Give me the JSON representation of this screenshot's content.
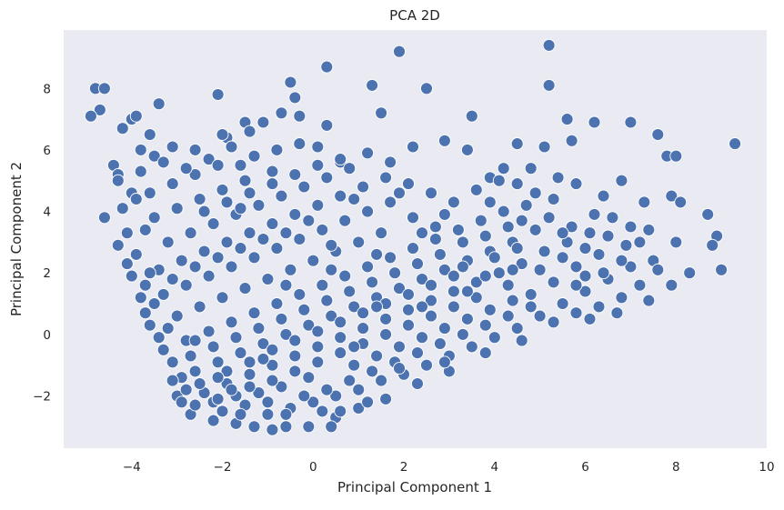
{
  "chart_data": {
    "type": "scatter",
    "title": "PCA 2D",
    "xlabel": "Principal Component 1",
    "ylabel": "Principal Component 2",
    "xlim": [
      -5.5,
      10.0
    ],
    "ylim": [
      -3.7,
      9.9
    ],
    "x_ticks": [
      -4,
      -2,
      0,
      2,
      4,
      6,
      8,
      10
    ],
    "x_tick_labels": [
      "−4",
      "−2",
      "0",
      "2",
      "4",
      "6",
      "8",
      "10"
    ],
    "y_ticks": [
      -2,
      0,
      2,
      4,
      6,
      8
    ],
    "y_tick_labels": [
      "−2",
      "0",
      "2",
      "4",
      "6",
      "8"
    ],
    "grid": false,
    "legend": "none",
    "colors": {
      "background": "#eaeaf2",
      "marker": "#4c72b0",
      "marker_edge": "#ffffff"
    },
    "points": [
      [
        5.2,
        9.4
      ],
      [
        1.9,
        9.2
      ],
      [
        0.3,
        8.7
      ],
      [
        -0.5,
        8.2
      ],
      [
        1.3,
        8.1
      ],
      [
        2.5,
        8.0
      ],
      [
        5.2,
        8.1
      ],
      [
        -4.8,
        8.0
      ],
      [
        -4.6,
        8.0
      ],
      [
        -2.1,
        7.8
      ],
      [
        -0.4,
        7.7
      ],
      [
        -3.4,
        7.5
      ],
      [
        -4.7,
        7.3
      ],
      [
        -4.9,
        7.1
      ],
      [
        3.5,
        7.1
      ],
      [
        5.6,
        7.0
      ],
      [
        6.2,
        6.9
      ],
      [
        7.0,
        6.9
      ],
      [
        -4.0,
        7.0
      ],
      [
        -3.9,
        7.1
      ],
      [
        -1.5,
        6.9
      ],
      [
        -1.1,
        6.9
      ],
      [
        -0.7,
        7.2
      ],
      [
        -0.3,
        7.1
      ],
      [
        1.5,
        7.2
      ],
      [
        0.3,
        6.8
      ],
      [
        -1.9,
        6.4
      ],
      [
        -1.4,
        6.6
      ],
      [
        -2.0,
        6.5
      ],
      [
        -3.6,
        6.5
      ],
      [
        -4.2,
        6.7
      ],
      [
        7.6,
        6.5
      ],
      [
        9.3,
        6.2
      ],
      [
        4.5,
        6.2
      ],
      [
        5.1,
        6.1
      ],
      [
        5.7,
        6.3
      ],
      [
        7.8,
        5.8
      ],
      [
        8.0,
        5.8
      ],
      [
        -4.4,
        5.5
      ],
      [
        -4.3,
        5.2
      ],
      [
        -4.6,
        3.8
      ],
      [
        7.9,
        4.5
      ],
      [
        8.1,
        4.3
      ],
      [
        8.7,
        3.9
      ],
      [
        8.9,
        3.2
      ],
      [
        8.0,
        3.0
      ],
      [
        8.8,
        2.9
      ],
      [
        9.0,
        2.1
      ],
      [
        8.3,
        2.0
      ],
      [
        7.9,
        1.6
      ],
      [
        7.4,
        1.1
      ],
      [
        6.7,
        0.7
      ],
      [
        6.1,
        0.5
      ],
      [
        5.3,
        0.4
      ],
      [
        4.6,
        -0.2
      ],
      [
        3.8,
        -0.6
      ],
      [
        3.0,
        -1.2
      ],
      [
        2.3,
        -1.6
      ],
      [
        1.6,
        -2.1
      ],
      [
        1.0,
        -2.4
      ],
      [
        0.5,
        -2.7
      ],
      [
        0.4,
        -3.0
      ],
      [
        -0.1,
        -3.0
      ],
      [
        -0.6,
        -3.0
      ],
      [
        -0.9,
        -3.1
      ],
      [
        -1.3,
        -3.0
      ],
      [
        -1.7,
        -2.9
      ],
      [
        -2.2,
        -2.8
      ],
      [
        -2.7,
        -2.6
      ],
      [
        -3.0,
        -2.0
      ],
      [
        -2.9,
        -1.4
      ],
      [
        -3.1,
        -0.9
      ],
      [
        -3.3,
        -0.5
      ],
      [
        -3.4,
        -0.1
      ],
      [
        -3.6,
        0.3
      ],
      [
        -3.7,
        0.7
      ],
      [
        -3.8,
        1.2
      ],
      [
        -3.7,
        1.6
      ],
      [
        -4.0,
        1.9
      ],
      [
        -4.1,
        2.3
      ],
      [
        -4.3,
        2.9
      ],
      [
        -4.1,
        3.3
      ],
      [
        -4.2,
        4.1
      ],
      [
        -4.0,
        4.6
      ],
      [
        -4.3,
        5.0
      ],
      [
        -3.8,
        5.3
      ],
      [
        -3.5,
        5.8
      ],
      [
        -3.1,
        6.1
      ],
      [
        -2.6,
        6.0
      ],
      [
        -2.3,
        5.7
      ],
      [
        -1.8,
        6.1
      ],
      [
        -1.3,
        5.8
      ],
      [
        -0.8,
        6.0
      ],
      [
        -0.3,
        6.2
      ],
      [
        0.1,
        6.1
      ],
      [
        0.6,
        5.6
      ],
      [
        1.2,
        5.9
      ],
      [
        1.7,
        5.6
      ],
      [
        2.2,
        6.1
      ],
      [
        2.9,
        6.3
      ],
      [
        3.4,
        6.0
      ],
      [
        3.9,
        5.1
      ],
      [
        4.1,
        5.0
      ],
      [
        4.5,
        4.9
      ],
      [
        4.9,
        4.6
      ],
      [
        5.3,
        4.4
      ],
      [
        5.8,
        4.9
      ],
      [
        6.4,
        4.5
      ],
      [
        6.8,
        5.0
      ],
      [
        7.3,
        4.3
      ],
      [
        6.6,
        3.8
      ],
      [
        6.1,
        3.3
      ],
      [
        5.6,
        3.0
      ],
      [
        5.1,
        2.7
      ],
      [
        4.6,
        2.3
      ],
      [
        4.1,
        2.0
      ],
      [
        3.6,
        1.7
      ],
      [
        3.1,
        1.4
      ],
      [
        2.6,
        1.1
      ],
      [
        2.1,
        0.8
      ],
      [
        1.6,
        0.5
      ],
      [
        1.1,
        0.2
      ],
      [
        0.6,
        -0.1
      ],
      [
        0.1,
        -0.4
      ],
      [
        -0.4,
        -0.7
      ],
      [
        -0.9,
        -1.0
      ],
      [
        -1.4,
        -1.3
      ],
      [
        -1.9,
        -1.6
      ],
      [
        -2.4,
        -1.9
      ],
      [
        -2.6,
        -2.3
      ],
      [
        -2.0,
        -2.5
      ],
      [
        -1.5,
        -2.3
      ],
      [
        -1.0,
        -2.6
      ],
      [
        -0.5,
        -2.4
      ],
      [
        0.0,
        -2.2
      ],
      [
        0.5,
        -2.0
      ],
      [
        1.0,
        -1.8
      ],
      [
        1.5,
        -1.5
      ],
      [
        2.0,
        -1.3
      ],
      [
        2.5,
        -1.0
      ],
      [
        3.0,
        -0.7
      ],
      [
        3.5,
        -0.4
      ],
      [
        4.0,
        -0.1
      ],
      [
        4.5,
        0.2
      ],
      [
        5.0,
        0.6
      ],
      [
        5.5,
        1.0
      ],
      [
        6.0,
        1.4
      ],
      [
        6.5,
        1.8
      ],
      [
        7.0,
        2.2
      ],
      [
        7.5,
        2.4
      ],
      [
        7.2,
        1.6
      ],
      [
        6.8,
        1.2
      ],
      [
        6.3,
        0.9
      ],
      [
        5.8,
        0.7
      ],
      [
        5.8,
        2.2
      ],
      [
        6.3,
        2.6
      ],
      [
        6.9,
        2.9
      ],
      [
        7.4,
        3.4
      ],
      [
        7.6,
        2.1
      ],
      [
        4.9,
        3.4
      ],
      [
        4.4,
        3.0
      ],
      [
        3.9,
        2.7
      ],
      [
        3.4,
        2.4
      ],
      [
        2.9,
        2.1
      ],
      [
        2.4,
        1.8
      ],
      [
        1.9,
        1.5
      ],
      [
        1.4,
        1.2
      ],
      [
        0.9,
        0.9
      ],
      [
        0.4,
        0.6
      ],
      [
        -0.1,
        0.3
      ],
      [
        -0.6,
        0.0
      ],
      [
        -1.1,
        -0.3
      ],
      [
        -1.6,
        -0.6
      ],
      [
        -2.1,
        -0.9
      ],
      [
        -2.6,
        -1.2
      ],
      [
        -3.1,
        -1.5
      ],
      [
        -2.8,
        -0.2
      ],
      [
        -2.3,
        0.1
      ],
      [
        -1.8,
        0.4
      ],
      [
        -1.3,
        0.7
      ],
      [
        -0.8,
        1.0
      ],
      [
        -0.3,
        1.3
      ],
      [
        0.2,
        1.6
      ],
      [
        0.7,
        1.9
      ],
      [
        1.2,
        2.2
      ],
      [
        1.7,
        2.5
      ],
      [
        2.2,
        2.8
      ],
      [
        2.7,
        3.1
      ],
      [
        3.2,
        3.4
      ],
      [
        3.7,
        3.7
      ],
      [
        4.2,
        4.0
      ],
      [
        4.7,
        4.2
      ],
      [
        5.2,
        3.8
      ],
      [
        5.7,
        3.5
      ],
      [
        6.2,
        3.9
      ],
      [
        5.4,
        5.1
      ],
      [
        4.8,
        5.4
      ],
      [
        4.2,
        5.4
      ],
      [
        3.6,
        4.7
      ],
      [
        3.1,
        4.3
      ],
      [
        2.6,
        4.6
      ],
      [
        2.1,
        4.9
      ],
      [
        1.6,
        5.1
      ],
      [
        1.1,
        4.8
      ],
      [
        0.6,
        4.5
      ],
      [
        0.1,
        4.2
      ],
      [
        -0.4,
        3.9
      ],
      [
        -0.9,
        3.6
      ],
      [
        -1.4,
        3.3
      ],
      [
        -1.9,
        3.0
      ],
      [
        -2.4,
        2.7
      ],
      [
        -2.9,
        2.4
      ],
      [
        -3.4,
        2.1
      ],
      [
        -3.2,
        3.0
      ],
      [
        -2.7,
        3.3
      ],
      [
        -2.2,
        3.6
      ],
      [
        -1.7,
        3.9
      ],
      [
        -1.2,
        4.2
      ],
      [
        -0.7,
        4.5
      ],
      [
        -0.2,
        4.8
      ],
      [
        0.3,
        5.1
      ],
      [
        0.8,
        5.4
      ],
      [
        -0.9,
        5.3
      ],
      [
        -1.5,
        5.0
      ],
      [
        -2.0,
        4.7
      ],
      [
        -2.5,
        4.4
      ],
      [
        -3.0,
        4.1
      ],
      [
        -3.5,
        3.8
      ],
      [
        -3.6,
        4.6
      ],
      [
        -3.1,
        4.9
      ],
      [
        -2.6,
        5.2
      ],
      [
        -2.1,
        5.5
      ],
      [
        -1.6,
        5.5
      ],
      [
        -3.3,
        1.3
      ],
      [
        -2.8,
        1.6
      ],
      [
        -2.3,
        1.9
      ],
      [
        -1.8,
        2.2
      ],
      [
        -1.3,
        2.5
      ],
      [
        -0.8,
        2.8
      ],
      [
        -0.3,
        3.1
      ],
      [
        0.2,
        3.4
      ],
      [
        0.7,
        3.7
      ],
      [
        1.2,
        4.0
      ],
      [
        1.7,
        4.3
      ],
      [
        2.2,
        3.8
      ],
      [
        2.7,
        3.5
      ],
      [
        3.3,
        3.0
      ],
      [
        3.8,
        3.2
      ],
      [
        4.3,
        3.5
      ],
      [
        1.5,
        3.3
      ],
      [
        1.0,
        3.0
      ],
      [
        0.5,
        2.7
      ],
      [
        0.0,
        2.4
      ],
      [
        -0.5,
        2.1
      ],
      [
        -1.0,
        1.8
      ],
      [
        -1.5,
        1.5
      ],
      [
        -2.0,
        1.2
      ],
      [
        -2.5,
        0.9
      ],
      [
        -3.0,
        0.6
      ],
      [
        -2.7,
        -0.7
      ],
      [
        -2.2,
        -0.4
      ],
      [
        -1.7,
        -0.1
      ],
      [
        -1.2,
        0.2
      ],
      [
        -0.7,
        0.5
      ],
      [
        -0.2,
        0.8
      ],
      [
        0.3,
        1.1
      ],
      [
        0.8,
        1.4
      ],
      [
        1.3,
        1.7
      ],
      [
        1.8,
        2.0
      ],
      [
        2.3,
        2.3
      ],
      [
        2.8,
        2.6
      ],
      [
        3.3,
        2.2
      ],
      [
        3.8,
        1.9
      ],
      [
        4.3,
        1.6
      ],
      [
        4.8,
        1.3
      ],
      [
        5.3,
        1.7
      ],
      [
        5.8,
        1.6
      ],
      [
        4.8,
        0.9
      ],
      [
        4.3,
        0.6
      ],
      [
        3.8,
        0.3
      ],
      [
        3.3,
        0.0
      ],
      [
        2.8,
        -0.3
      ],
      [
        2.3,
        -0.6
      ],
      [
        1.8,
        -0.9
      ],
      [
        1.3,
        -1.2
      ],
      [
        0.8,
        -1.5
      ],
      [
        0.3,
        -1.8
      ],
      [
        -0.2,
        -2.0
      ],
      [
        -0.7,
        -1.7
      ],
      [
        -1.2,
        -1.9
      ],
      [
        -1.7,
        -2.0
      ],
      [
        -2.2,
        -2.2
      ],
      [
        -2.5,
        -1.6
      ],
      [
        -1.9,
        -1.2
      ],
      [
        -1.4,
        -0.9
      ],
      [
        -0.9,
        -0.5
      ],
      [
        -0.4,
        -0.2
      ],
      [
        0.1,
        0.1
      ],
      [
        0.6,
        0.4
      ],
      [
        1.1,
        0.7
      ],
      [
        1.6,
        1.0
      ],
      [
        2.1,
        1.3
      ],
      [
        2.6,
        1.6
      ],
      [
        3.1,
        1.9
      ],
      [
        3.6,
        1.2
      ],
      [
        3.1,
        0.9
      ],
      [
        2.6,
        0.6
      ],
      [
        2.1,
        0.3
      ],
      [
        1.6,
        0.0
      ],
      [
        1.1,
        -0.3
      ],
      [
        0.6,
        -0.6
      ],
      [
        0.1,
        -0.9
      ],
      [
        -0.4,
        -1.2
      ],
      [
        -0.9,
        -1.5
      ],
      [
        -1.4,
        -1.7
      ],
      [
        0.9,
        -1.0
      ],
      [
        1.4,
        -0.7
      ],
      [
        1.9,
        -0.4
      ],
      [
        2.4,
        -0.1
      ],
      [
        2.9,
        0.2
      ],
      [
        3.4,
        0.5
      ],
      [
        3.9,
        0.8
      ],
      [
        4.4,
        1.1
      ],
      [
        4.0,
        2.5
      ],
      [
        4.5,
        2.8
      ],
      [
        5.0,
        2.1
      ],
      [
        5.5,
        2.5
      ],
      [
        6.0,
        2.8
      ],
      [
        6.5,
        3.2
      ],
      [
        7.0,
        3.5
      ],
      [
        7.2,
        3.0
      ],
      [
        6.8,
        2.4
      ],
      [
        6.4,
        2.0
      ],
      [
        6.0,
        1.9
      ],
      [
        -2.4,
        4.0
      ],
      [
        -1.9,
        4.3
      ],
      [
        -1.4,
        4.6
      ],
      [
        -0.9,
        4.9
      ],
      [
        -0.4,
        5.2
      ],
      [
        0.1,
        5.5
      ],
      [
        0.6,
        5.7
      ],
      [
        -3.8,
        6.0
      ],
      [
        -3.3,
        5.6
      ],
      [
        -2.8,
        5.4
      ],
      [
        -3.9,
        4.4
      ],
      [
        -3.7,
        3.4
      ],
      [
        -3.9,
        2.6
      ],
      [
        -3.6,
        2.0
      ],
      [
        -3.5,
        1.0
      ],
      [
        -3.2,
        0.2
      ],
      [
        -1.6,
        4.1
      ],
      [
        -0.6,
        3.3
      ],
      [
        0.4,
        2.9
      ],
      [
        1.4,
        2.6
      ],
      [
        2.4,
        3.3
      ],
      [
        2.9,
        3.9
      ],
      [
        3.9,
        4.3
      ],
      [
        4.6,
        3.7
      ],
      [
        5.5,
        3.3
      ],
      [
        1.9,
        4.6
      ],
      [
        0.9,
        4.4
      ],
      [
        -0.1,
        3.7
      ],
      [
        -1.1,
        3.1
      ],
      [
        -2.1,
        2.5
      ],
      [
        -3.1,
        1.8
      ],
      [
        -2.6,
        2.2
      ],
      [
        -1.6,
        2.8
      ],
      [
        -0.6,
        1.6
      ],
      [
        0.4,
        2.1
      ],
      [
        1.4,
        0.9
      ],
      [
        2.4,
        0.9
      ],
      [
        3.4,
        1.4
      ],
      [
        4.4,
        2.1
      ],
      [
        -2.6,
        -0.2
      ],
      [
        -2.1,
        -1.4
      ],
      [
        -1.1,
        -0.8
      ],
      [
        -0.1,
        -1.4
      ],
      [
        0.9,
        -0.4
      ],
      [
        1.9,
        -1.1
      ],
      [
        2.9,
        -0.9
      ],
      [
        -0.6,
        -2.6
      ],
      [
        0.2,
        -2.5
      ],
      [
        -1.0,
        -2.2
      ],
      [
        0.6,
        -2.5
      ],
      [
        1.2,
        -2.2
      ],
      [
        -1.6,
        -2.6
      ],
      [
        -2.1,
        -2.1
      ],
      [
        -2.8,
        -1.8
      ],
      [
        -2.9,
        -2.2
      ],
      [
        -1.8,
        -1.8
      ]
    ]
  }
}
